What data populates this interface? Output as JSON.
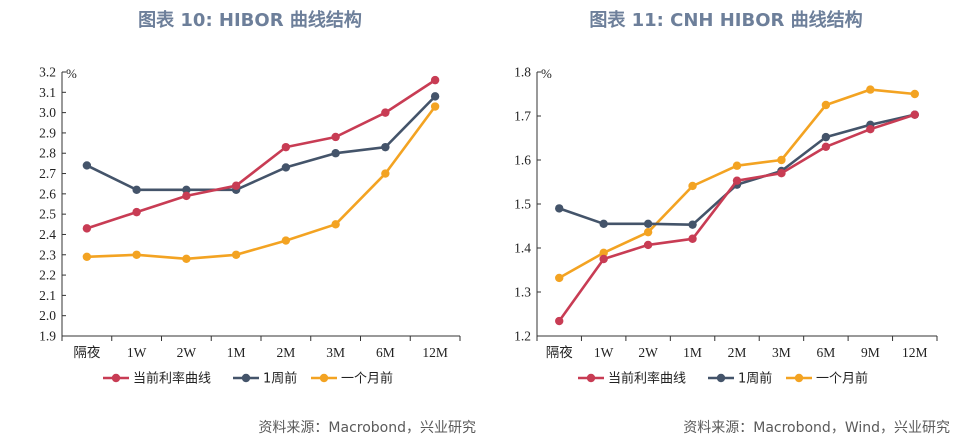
{
  "charts": [
    {
      "title": "图表 10: HIBOR 曲线结构",
      "source": "资料来源：Macrobond，兴业研究"
    },
    {
      "title": "图表 11: CNH HIBOR 曲线结构",
      "source": "资料来源：Macrobond，Wind，兴业研究"
    }
  ],
  "chart_data": [
    {
      "type": "line",
      "title": "图表 10: HIBOR 曲线结构",
      "unit_label": "%",
      "categories": [
        "隔夜",
        "1W",
        "2W",
        "1M",
        "2M",
        "3M",
        "6M",
        "12M"
      ],
      "ylim": [
        1.9,
        3.2
      ],
      "yticks": [
        "1.9",
        "2.0",
        "2.1",
        "2.2",
        "2.3",
        "2.4",
        "2.5",
        "2.6",
        "2.7",
        "2.8",
        "2.9",
        "3.0",
        "3.1",
        "3.2"
      ],
      "grid": false,
      "legend_position": "bottom",
      "series": [
        {
          "name": "当前利率曲线",
          "color": "#c83c54",
          "values": [
            2.43,
            2.51,
            2.59,
            2.64,
            2.83,
            2.88,
            3.0,
            3.16
          ]
        },
        {
          "name": "1周前",
          "color": "#44546a",
          "values": [
            2.74,
            2.62,
            2.62,
            2.62,
            2.73,
            2.8,
            2.83,
            3.08
          ]
        },
        {
          "name": "一个月前",
          "color": "#f3a322",
          "values": [
            2.29,
            2.3,
            2.28,
            2.3,
            2.37,
            2.45,
            2.7,
            3.03
          ]
        }
      ]
    },
    {
      "type": "line",
      "title": "图表 11: CNH HIBOR 曲线结构",
      "unit_label": "%",
      "categories": [
        "隔夜",
        "1W",
        "2W",
        "1M",
        "2M",
        "3M",
        "6M",
        "9M",
        "12M"
      ],
      "ylim": [
        1.2,
        1.8
      ],
      "yticks": [
        "1.2",
        "1.3",
        "1.4",
        "1.5",
        "1.6",
        "1.7",
        "1.8"
      ],
      "grid": false,
      "legend_position": "bottom",
      "series": [
        {
          "name": "当前利率曲线",
          "color": "#c83c54",
          "values": [
            1.234,
            1.375,
            1.407,
            1.421,
            1.553,
            1.57,
            1.63,
            1.67,
            1.703
          ]
        },
        {
          "name": "1周前",
          "color": "#44546a",
          "values": [
            1.49,
            1.455,
            1.455,
            1.453,
            1.544,
            1.575,
            1.652,
            1.68,
            1.703
          ]
        },
        {
          "name": "一个月前",
          "color": "#f3a322",
          "values": [
            1.332,
            1.389,
            1.436,
            1.541,
            1.587,
            1.6,
            1.725,
            1.76,
            1.75
          ]
        }
      ]
    }
  ]
}
